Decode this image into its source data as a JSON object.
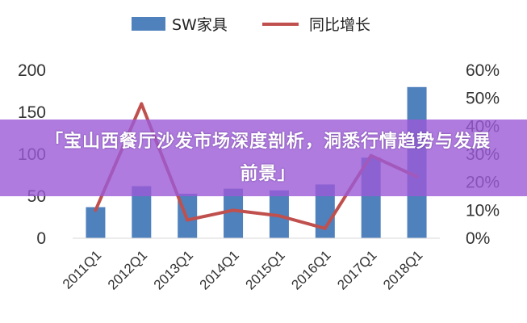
{
  "chart_data": {
    "type": "bar",
    "categories": [
      "2011Q1",
      "2012Q1",
      "2013Q1",
      "2014Q1",
      "2015Q1",
      "2016Q1",
      "2017Q1",
      "2018Q1"
    ],
    "series": [
      {
        "name": "SW家具",
        "type": "bar",
        "axis": "left",
        "values": [
          37,
          62,
          53,
          59,
          57,
          64,
          96,
          180
        ]
      },
      {
        "name": "同比增长",
        "type": "line",
        "axis": "right",
        "values": [
          0.1,
          0.48,
          0.065,
          0.1,
          0.08,
          0.035,
          0.295,
          0.22
        ]
      }
    ],
    "y_left": {
      "ylim": [
        0,
        200
      ],
      "ticks": [
        "0",
        "50",
        "100",
        "150",
        "200"
      ]
    },
    "y_right": {
      "ylim": [
        0,
        0.6
      ],
      "ticks": [
        "0%",
        "10%",
        "20%",
        "30%",
        "40%",
        "50%",
        "60%"
      ]
    },
    "legend": "top-center",
    "grid": false
  },
  "colors": {
    "bar": "#4f81bd",
    "line": "#c0504d",
    "banner": "#9b5ad7"
  },
  "banner": {
    "title": "「宝山西餐厅沙发市场深度剖析，洞悉行情趋势与发展前景」"
  }
}
